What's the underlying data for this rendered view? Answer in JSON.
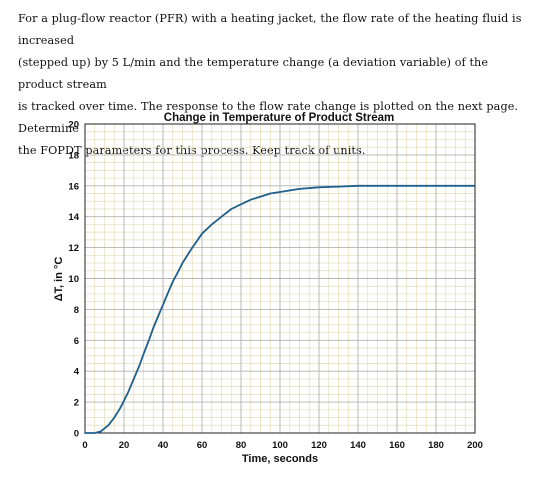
{
  "problem": {
    "lines": [
      "For a plug-flow reactor (PFR) with a heating jacket, the flow rate of the heating fluid is increased",
      "(stepped up) by 5 L/min and the temperature change (a deviation variable) of the product stream",
      "is tracked over time. The response to the flow rate change is plotted on the next page. Determine",
      "the FOPDT parameters for this process. Keep track of units."
    ]
  },
  "chart_data": {
    "type": "line",
    "title": "Change in Temperature of Product Stream",
    "xlabel": "Time, seconds",
    "ylabel": "ΔT, in °C",
    "xlim": [
      0,
      200
    ],
    "ylim": [
      0,
      20
    ],
    "xticks": [
      "0",
      "20",
      "40",
      "60",
      "80",
      "100",
      "120",
      "140",
      "160",
      "180",
      "200"
    ],
    "yticks": [
      "0",
      "2",
      "4",
      "6",
      "8",
      "10",
      "12",
      "14",
      "16",
      "18",
      "20"
    ],
    "grid": true,
    "minor_grid": true,
    "series": [
      {
        "color": "#1f5f8b",
        "x": [
          0,
          5,
          8,
          10,
          12,
          15,
          18,
          20,
          22,
          25,
          28,
          30,
          33,
          35,
          38,
          40,
          43,
          45,
          48,
          50,
          55,
          60,
          65,
          70,
          75,
          80,
          85,
          90,
          95,
          100,
          110,
          120,
          130,
          140,
          150,
          160,
          170,
          180,
          190,
          200
        ],
        "y": [
          0,
          0,
          0.1,
          0.3,
          0.5,
          1.0,
          1.6,
          2.1,
          2.6,
          3.5,
          4.4,
          5.1,
          6.1,
          6.8,
          7.7,
          8.3,
          9.2,
          9.8,
          10.5,
          11.0,
          12.0,
          12.9,
          13.5,
          14.0,
          14.5,
          14.8,
          15.1,
          15.3,
          15.5,
          15.6,
          15.8,
          15.9,
          15.95,
          16.0,
          16.0,
          16.0,
          16.0,
          16.0,
          16.0,
          16.0
        ]
      }
    ]
  }
}
